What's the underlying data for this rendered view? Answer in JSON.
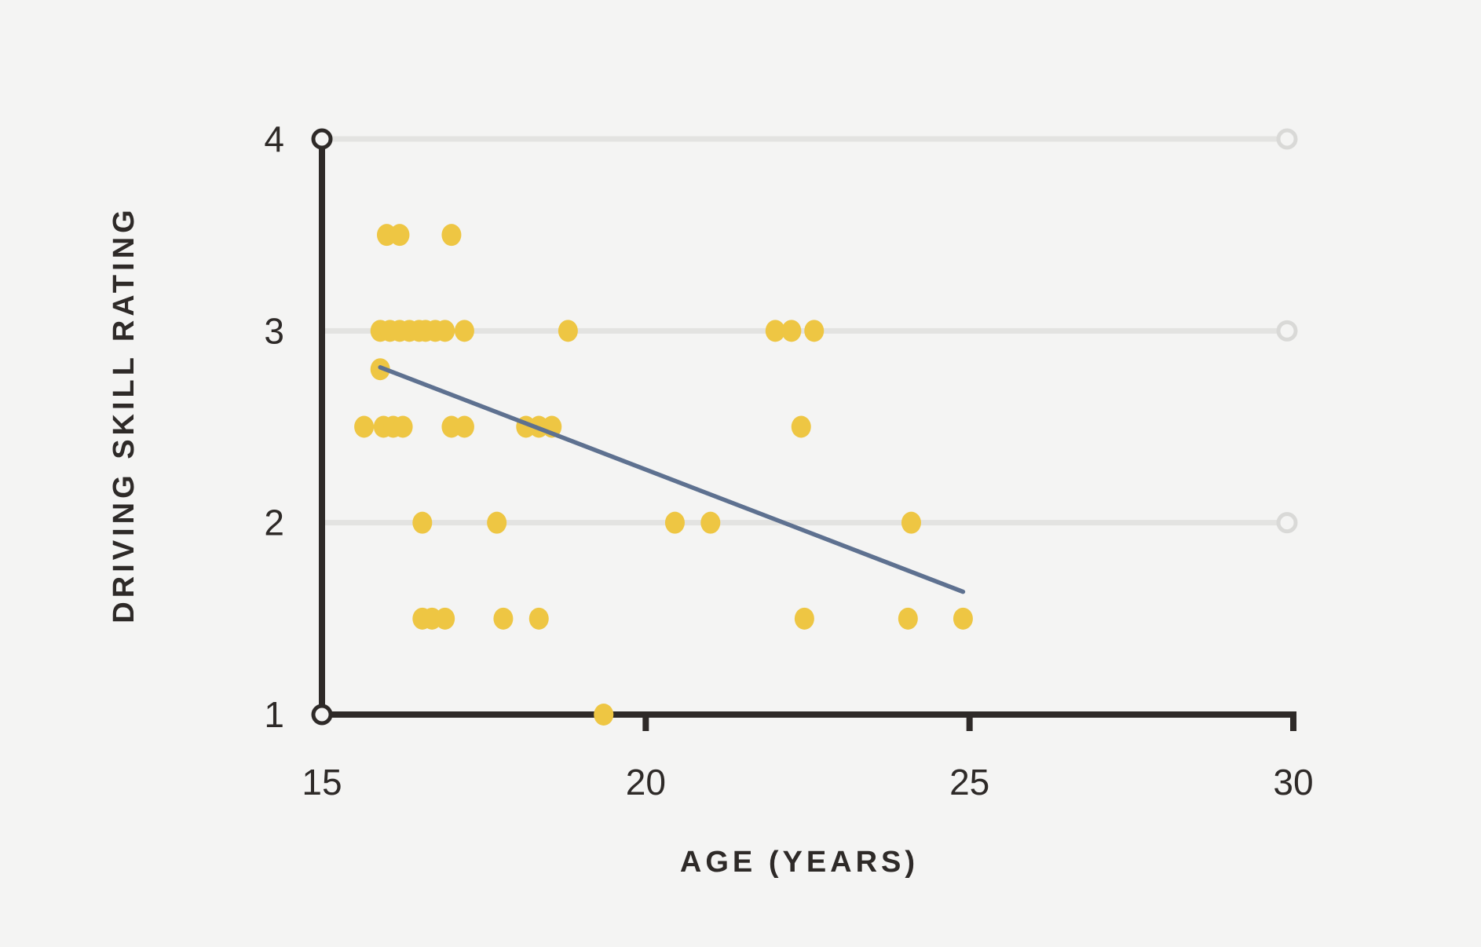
{
  "chart_data": {
    "type": "scatter",
    "title": "",
    "xlabel": "AGE (YEARS)",
    "ylabel": "DRIVING SKILL RATING",
    "xlim": [
      15,
      30
    ],
    "ylim": [
      1,
      4
    ],
    "x_ticks": [
      15,
      20,
      25,
      30
    ],
    "y_ticks": [
      1,
      2,
      3,
      4
    ],
    "grid": "horizontal gridlines at ratings 2, 3, 4 ending in open circles at age 30",
    "legend": "none",
    "points": [
      [
        16.0,
        3.5
      ],
      [
        16.2,
        3.5
      ],
      [
        17.0,
        3.5
      ],
      [
        15.9,
        3
      ],
      [
        16.05,
        3
      ],
      [
        16.2,
        3
      ],
      [
        16.35,
        3
      ],
      [
        16.5,
        3
      ],
      [
        16.6,
        3
      ],
      [
        16.75,
        3
      ],
      [
        16.9,
        3
      ],
      [
        17.2,
        3
      ],
      [
        18.8,
        3
      ],
      [
        22.0,
        3
      ],
      [
        22.25,
        3
      ],
      [
        22.6,
        3
      ],
      [
        15.9,
        2.8
      ],
      [
        15.65,
        2.5
      ],
      [
        15.95,
        2.5
      ],
      [
        16.1,
        2.5
      ],
      [
        16.25,
        2.5
      ],
      [
        17.0,
        2.5
      ],
      [
        17.2,
        2.5
      ],
      [
        18.15,
        2.5
      ],
      [
        18.35,
        2.5
      ],
      [
        18.55,
        2.5
      ],
      [
        22.4,
        2.5
      ],
      [
        16.55,
        2
      ],
      [
        17.7,
        2
      ],
      [
        20.45,
        2
      ],
      [
        21.0,
        2
      ],
      [
        24.1,
        2
      ],
      [
        16.55,
        1.5
      ],
      [
        16.7,
        1.5
      ],
      [
        16.9,
        1.5
      ],
      [
        17.8,
        1.5
      ],
      [
        18.35,
        1.5
      ],
      [
        22.45,
        1.5
      ],
      [
        24.05,
        1.5
      ],
      [
        24.9,
        1.5
      ],
      [
        19.35,
        1
      ]
    ],
    "trend_line": {
      "x1": 15.9,
      "y1": 2.81,
      "x2": 24.9,
      "y2": 1.64
    },
    "colors": {
      "background": "#F4F4F3",
      "point": "#EEC643",
      "trend": "#5E7190",
      "gridline": "#E3E3E1",
      "grid_end_circle": "#D9D9D7",
      "axis": "#2E2A28",
      "text": "#2E2A28"
    }
  }
}
